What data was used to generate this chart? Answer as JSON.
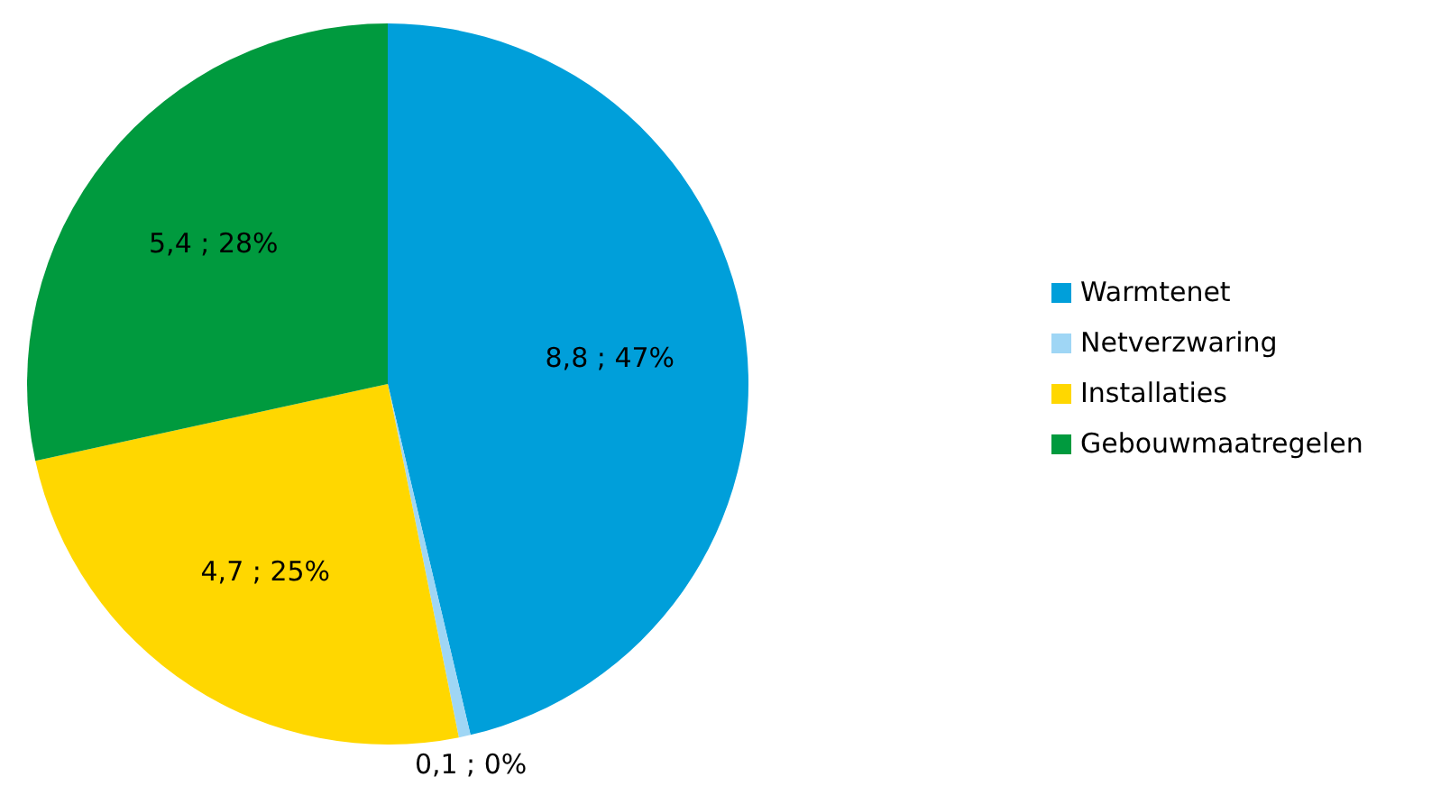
{
  "chart_data": {
    "type": "pie",
    "categories": [
      "Warmtenet",
      "Netverzwaring",
      "Installaties",
      "Gebouwmaatregelen"
    ],
    "values": [
      8.8,
      0.1,
      4.7,
      5.4
    ],
    "value_labels": [
      "8,8 ; 47%",
      "0,1 ; 0%",
      "4,7 ; 25%",
      "5,4 ; 28%"
    ],
    "colors": [
      "#009fda",
      "#9fd6f5",
      "#ffd700",
      "#009a3e"
    ],
    "legend": "right"
  }
}
